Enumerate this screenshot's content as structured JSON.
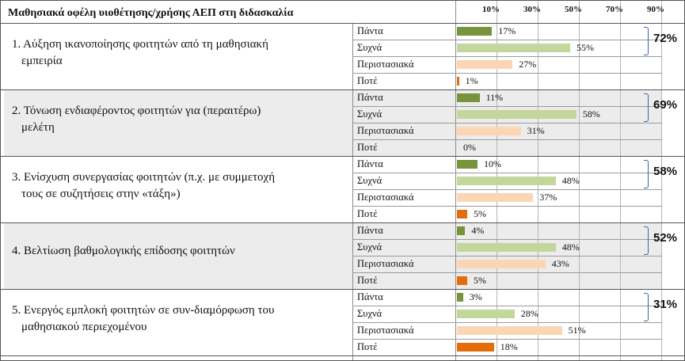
{
  "chart_data": {
    "type": "bar",
    "title": "Μαθησιακά οφέλη υιοθέτησης/χρήσης ΑΕΠ στη διδασκαλία",
    "x_ticks": [
      "10%",
      "30%",
      "50%",
      "70%",
      "90%"
    ],
    "xlim": [
      0,
      100
    ],
    "levels": [
      "Πάντα",
      "Συχνά",
      "Περιστασιακά",
      "Ποτέ"
    ],
    "level_colors": [
      "#77933c",
      "#c3d69b",
      "#fcd5b5",
      "#e46c0a"
    ],
    "groups": [
      {
        "question_lines": [
          "1. Αύξηση ικανοποίησης φοιτητών από τη μαθησιακή",
          "εμπειρία"
        ],
        "values": [
          17,
          55,
          27,
          1
        ],
        "value_labels": [
          "17%",
          "55%",
          "27%",
          "1%"
        ],
        "total_label": "72%"
      },
      {
        "question_lines": [
          "2. Τόνωση ενδιαφέροντος φοιτητών για (περαιτέρω)",
          "μελέτη"
        ],
        "values": [
          11,
          58,
          31,
          0
        ],
        "value_labels": [
          "11%",
          "58%",
          "31%",
          "0%"
        ],
        "total_label": "69%"
      },
      {
        "question_lines": [
          "3. Ενίσχυση συνεργασίας φοιτητών (π.χ. με συμμετοχή",
          "τους σε συζητήσεις στην «τάξη»)"
        ],
        "values": [
          10,
          48,
          37,
          5
        ],
        "value_labels": [
          "10%",
          "48%",
          "37%",
          "5%"
        ],
        "total_label": "58%"
      },
      {
        "question_lines": [
          "4. Βελτίωση βαθμολογικής επίδοσης φοιτητών"
        ],
        "values": [
          4,
          48,
          43,
          5
        ],
        "value_labels": [
          "4%",
          "48%",
          "43%",
          "5%"
        ],
        "total_label": "52%"
      },
      {
        "question_lines": [
          "5. Ενεργός εμπλοκή φοιτητών σε συν-διαμόρφωση του",
          "μαθησιακού περιεχομένου"
        ],
        "values": [
          3,
          28,
          51,
          18
        ],
        "value_labels": [
          "3%",
          "28%",
          "51%",
          "18%"
        ],
        "total_label": "31%"
      }
    ]
  }
}
